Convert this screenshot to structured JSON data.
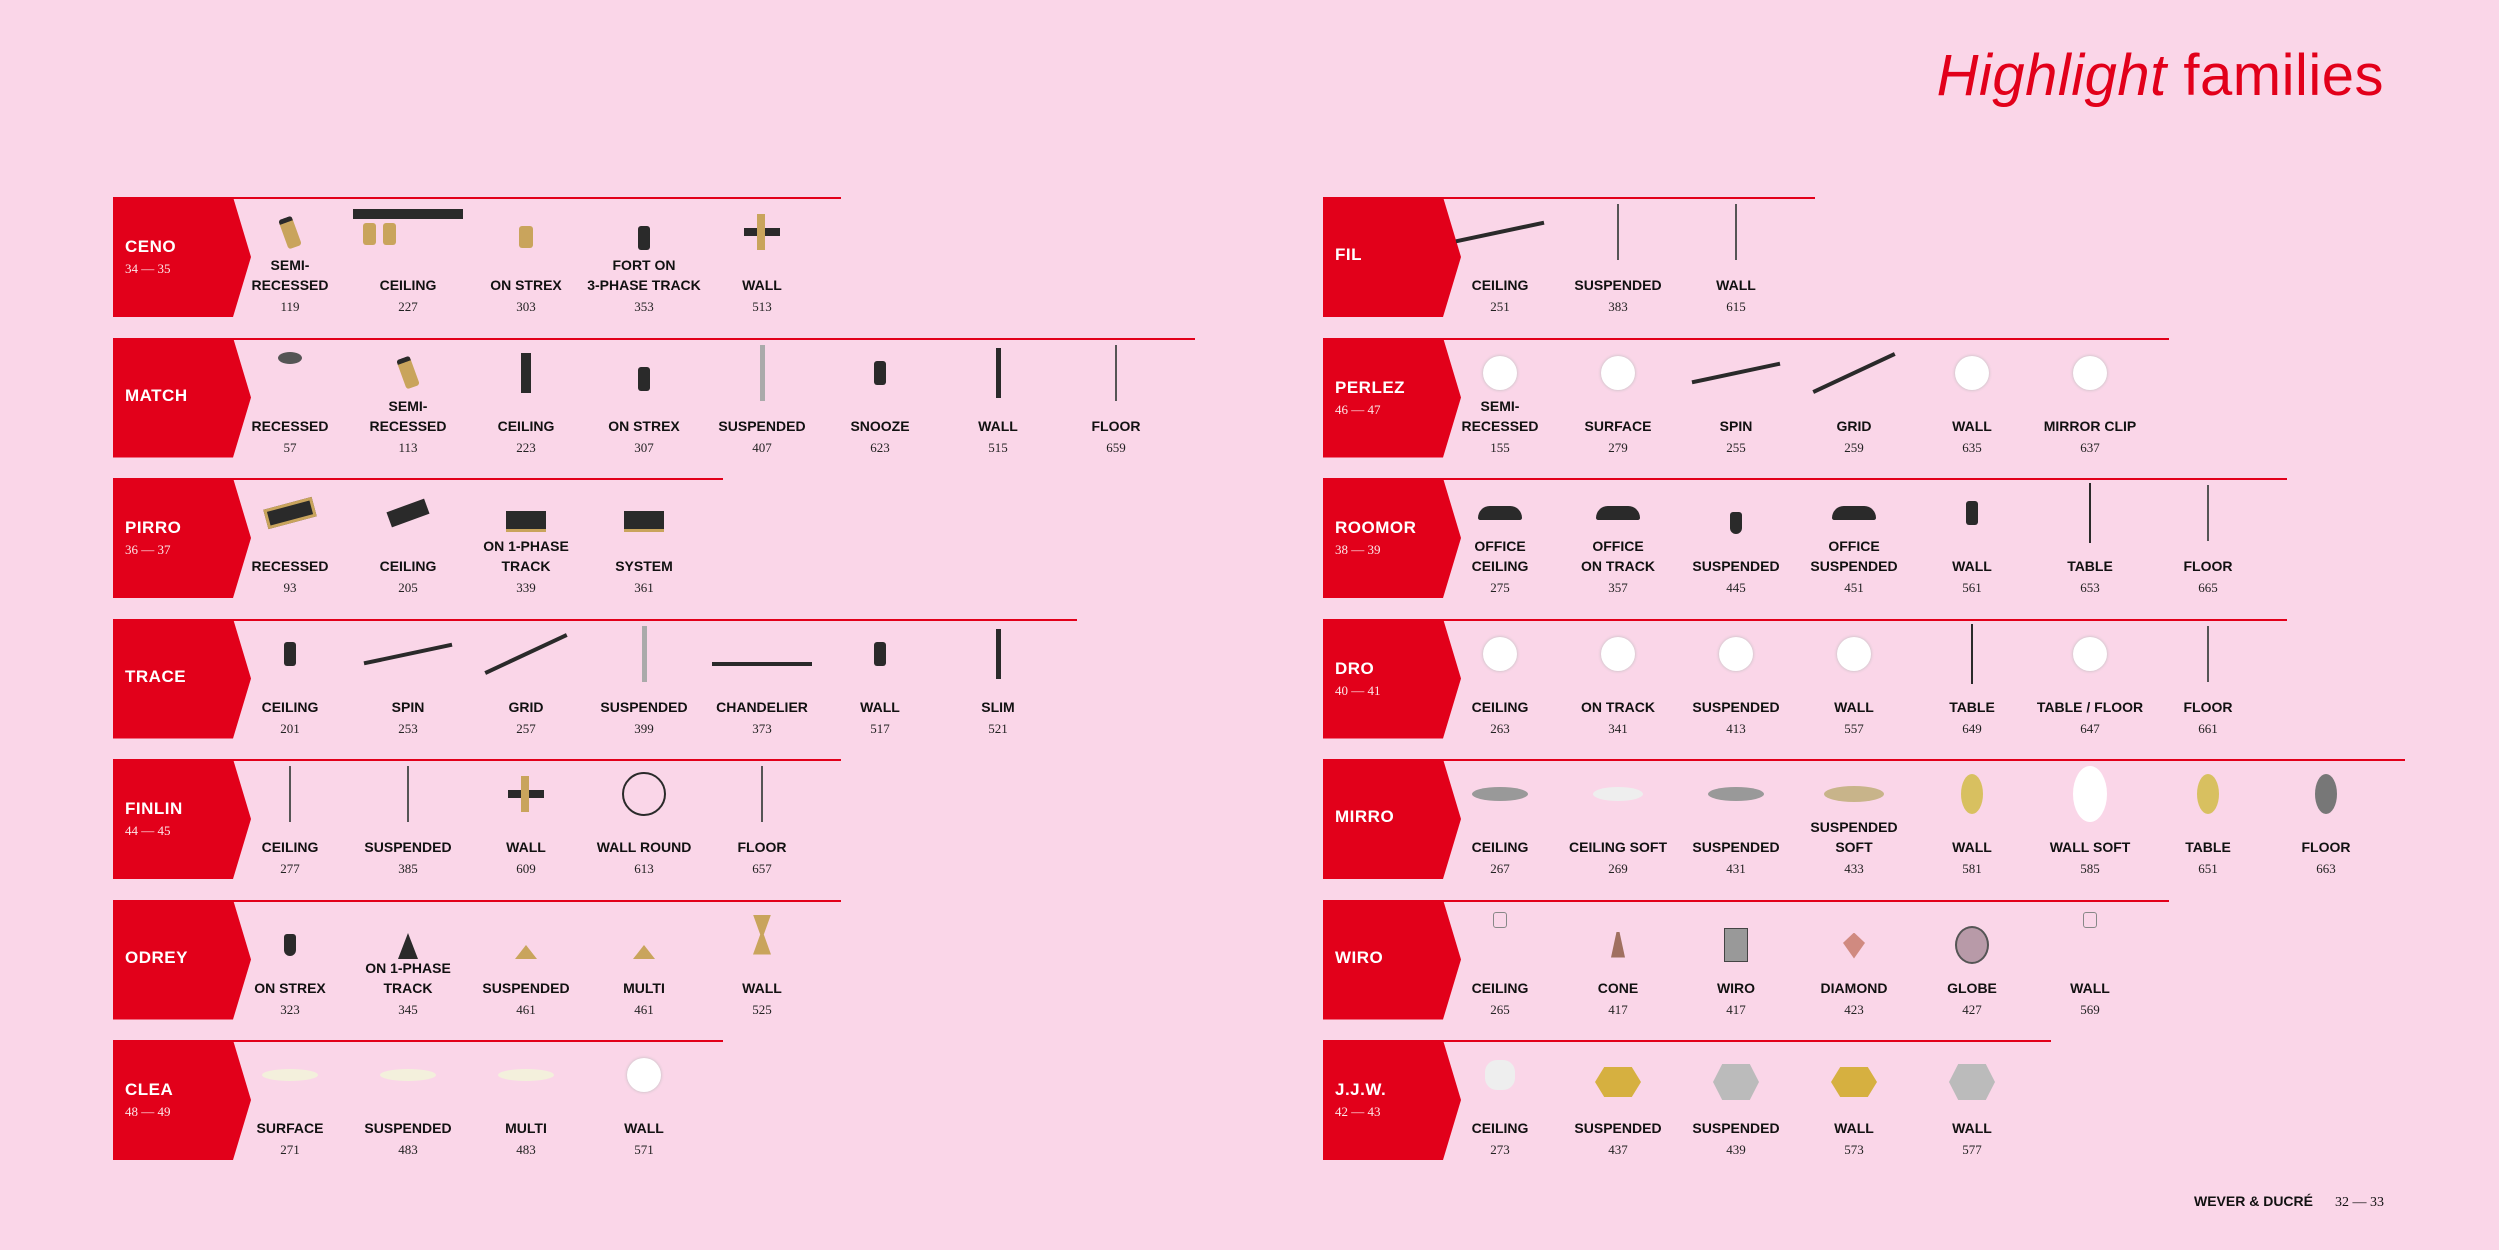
{
  "header": {
    "title_italic": "Highlight",
    "title_rest": " families"
  },
  "footer": {
    "brand": "WEVER & DUCRÉ",
    "pages": "32 — 33"
  },
  "colors": {
    "accent": "#e2001a",
    "background": "#fad6e8",
    "brass": "#c9a45c",
    "black": "#2a2a2a"
  },
  "left_families": [
    {
      "name": "CENO",
      "pages": "34 — 35",
      "items": [
        {
          "label": "SEMI-\nRECESSED",
          "page": "119",
          "icon": "spot-brass"
        },
        {
          "label": "CEILING",
          "page": "227",
          "icon": "spot-brass-double"
        },
        {
          "label": "ON STREX",
          "page": "303",
          "icon": "track-spot-brass"
        },
        {
          "label": "FORT ON\n3-PHASE TRACK",
          "page": "353",
          "icon": "track-spot-black"
        },
        {
          "label": "WALL",
          "page": "513",
          "icon": "wall-cross"
        }
      ]
    },
    {
      "name": "MATCH",
      "pages": "",
      "items": [
        {
          "label": "RECESSED",
          "page": "57",
          "icon": "recessed-round"
        },
        {
          "label": "SEMI-\nRECESSED",
          "page": "113",
          "icon": "spot-brass"
        },
        {
          "label": "CEILING",
          "page": "223",
          "icon": "ceiling-bar"
        },
        {
          "label": "ON STREX",
          "page": "307",
          "icon": "track-spot-black"
        },
        {
          "label": "SUSPENDED",
          "page": "407",
          "icon": "pendant-tube"
        },
        {
          "label": "SNOOZE",
          "page": "623",
          "icon": "spot-black"
        },
        {
          "label": "WALL",
          "page": "515",
          "icon": "wall-tube"
        },
        {
          "label": "FLOOR",
          "page": "659",
          "icon": "floor-thin"
        }
      ]
    },
    {
      "name": "PIRRO",
      "pages": "36 — 37",
      "items": [
        {
          "label": "RECESSED",
          "page": "93",
          "icon": "linear-recessed"
        },
        {
          "label": "CEILING",
          "page": "205",
          "icon": "linear-box"
        },
        {
          "label": "ON 1-PHASE\nTRACK",
          "page": "339",
          "icon": "track-box"
        },
        {
          "label": "SYSTEM",
          "page": "361",
          "icon": "track-box"
        }
      ]
    },
    {
      "name": "TRACE",
      "pages": "",
      "items": [
        {
          "label": "CEILING",
          "page": "201",
          "icon": "spot-black"
        },
        {
          "label": "SPIN",
          "page": "253",
          "icon": "spin-bar"
        },
        {
          "label": "GRID",
          "page": "257",
          "icon": "grid-bar"
        },
        {
          "label": "SUSPENDED",
          "page": "399",
          "icon": "pendant-tube"
        },
        {
          "label": "CHANDELIER",
          "page": "373",
          "icon": "chandelier-bar"
        },
        {
          "label": "WALL",
          "page": "517",
          "icon": "spot-black"
        },
        {
          "label": "SLIM",
          "page": "521",
          "icon": "wall-tube"
        }
      ]
    },
    {
      "name": "FINLIN",
      "pages": "44 — 45",
      "items": [
        {
          "label": "CEILING",
          "page": "277",
          "icon": "pendant-thin"
        },
        {
          "label": "SUSPENDED",
          "page": "385",
          "icon": "pendant-thin"
        },
        {
          "label": "WALL",
          "page": "609",
          "icon": "wall-cross"
        },
        {
          "label": "WALL ROUND",
          "page": "613",
          "icon": "ring"
        },
        {
          "label": "FLOOR",
          "page": "657",
          "icon": "floor-thin"
        }
      ]
    },
    {
      "name": "ODREY",
      "pages": "",
      "items": [
        {
          "label": "ON STREX",
          "page": "323",
          "icon": "pendant-black"
        },
        {
          "label": "ON 1-PHASE\nTRACK",
          "page": "345",
          "icon": "pendant-cone-black"
        },
        {
          "label": "SUSPENDED",
          "page": "461",
          "icon": "pendant-cone-brass"
        },
        {
          "label": "MULTI",
          "page": "461",
          "icon": "pendant-cone-brass"
        },
        {
          "label": "WALL",
          "page": "525",
          "icon": "wall-hourglass"
        }
      ]
    },
    {
      "name": "CLEA",
      "pages": "48 — 49",
      "items": [
        {
          "label": "SURFACE",
          "page": "271",
          "icon": "disc-cream"
        },
        {
          "label": "SUSPENDED",
          "page": "483",
          "icon": "disc-cream"
        },
        {
          "label": "MULTI",
          "page": "483",
          "icon": "disc-cream"
        },
        {
          "label": "WALL",
          "page": "571",
          "icon": "globe-white"
        }
      ]
    }
  ],
  "right_families": [
    {
      "name": "FIL",
      "pages": "",
      "items": [
        {
          "label": "CEILING",
          "page": "251",
          "icon": "spin-bar"
        },
        {
          "label": "SUSPENDED",
          "page": "383",
          "icon": "pendant-thin"
        },
        {
          "label": "WALL",
          "page": "615",
          "icon": "pendant-thin"
        }
      ]
    },
    {
      "name": "PERLEZ",
      "pages": "46 — 47",
      "items": [
        {
          "label": "SEMI-\nRECESSED",
          "page": "155",
          "icon": "globe-white"
        },
        {
          "label": "SURFACE",
          "page": "279",
          "icon": "globe-white"
        },
        {
          "label": "SPIN",
          "page": "255",
          "icon": "spin-bar"
        },
        {
          "label": "GRID",
          "page": "259",
          "icon": "grid-bar"
        },
        {
          "label": "WALL",
          "page": "635",
          "icon": "globe-white"
        },
        {
          "label": "MIRROR CLIP",
          "page": "637",
          "icon": "globe-white"
        }
      ]
    },
    {
      "name": "ROOMOR",
      "pages": "38 — 39",
      "items": [
        {
          "label": "OFFICE\nCEILING",
          "page": "275",
          "icon": "dome-black"
        },
        {
          "label": "OFFICE\nON TRACK",
          "page": "357",
          "icon": "dome-black"
        },
        {
          "label": "SUSPENDED",
          "page": "445",
          "icon": "pendant-black"
        },
        {
          "label": "OFFICE\nSUSPENDED",
          "page": "451",
          "icon": "dome-black"
        },
        {
          "label": "WALL",
          "page": "561",
          "icon": "spot-black"
        },
        {
          "label": "TABLE",
          "page": "653",
          "icon": "table-lamp"
        },
        {
          "label": "FLOOR",
          "page": "665",
          "icon": "floor-thin"
        }
      ]
    },
    {
      "name": "DRO",
      "pages": "40 — 41",
      "items": [
        {
          "label": "CEILING",
          "page": "263",
          "icon": "globe-white"
        },
        {
          "label": "ON TRACK",
          "page": "341",
          "icon": "globe-white"
        },
        {
          "label": "SUSPENDED",
          "page": "413",
          "icon": "globe-white"
        },
        {
          "label": "WALL",
          "page": "557",
          "icon": "globe-white"
        },
        {
          "label": "TABLE",
          "page": "649",
          "icon": "table-lamp"
        },
        {
          "label": "TABLE / FLOOR",
          "page": "647",
          "icon": "globe-white"
        },
        {
          "label": "FLOOR",
          "page": "661",
          "icon": "floor-thin"
        }
      ]
    },
    {
      "name": "MIRRO",
      "pages": "",
      "items": [
        {
          "label": "CEILING",
          "page": "267",
          "icon": "disc-grey"
        },
        {
          "label": "CEILING SOFT",
          "page": "269",
          "icon": "disc-white"
        },
        {
          "label": "SUSPENDED",
          "page": "431",
          "icon": "disc-grey"
        },
        {
          "label": "SUSPENDED\nSOFT",
          "page": "433",
          "icon": "disc-beige"
        },
        {
          "label": "WALL",
          "page": "581",
          "icon": "oval-gold"
        },
        {
          "label": "WALL SOFT",
          "page": "585",
          "icon": "oval-white"
        },
        {
          "label": "TABLE",
          "page": "651",
          "icon": "oval-gold"
        },
        {
          "label": "FLOOR",
          "page": "663",
          "icon": "oval-grey"
        }
      ]
    },
    {
      "name": "WIRO",
      "pages": "",
      "items": [
        {
          "label": "CEILING",
          "page": "265",
          "icon": "wire-small"
        },
        {
          "label": "CONE",
          "page": "417",
          "icon": "wire-cone"
        },
        {
          "label": "WIRO",
          "page": "417",
          "icon": "wire-cage"
        },
        {
          "label": "DIAMOND",
          "page": "423",
          "icon": "wire-diamond"
        },
        {
          "label": "GLOBE",
          "page": "427",
          "icon": "wire-globe"
        },
        {
          "label": "WALL",
          "page": "569",
          "icon": "wire-small"
        }
      ]
    },
    {
      "name": "J.J.W.",
      "pages": "42 — 43",
      "items": [
        {
          "label": "CEILING",
          "page": "273",
          "icon": "tiered-white"
        },
        {
          "label": "SUSPENDED",
          "page": "437",
          "icon": "tiered-gold"
        },
        {
          "label": "SUSPENDED",
          "page": "439",
          "icon": "tiered-silver"
        },
        {
          "label": "WALL",
          "page": "573",
          "icon": "tiered-gold"
        },
        {
          "label": "WALL",
          "page": "577",
          "icon": "tiered-silver"
        }
      ]
    }
  ]
}
